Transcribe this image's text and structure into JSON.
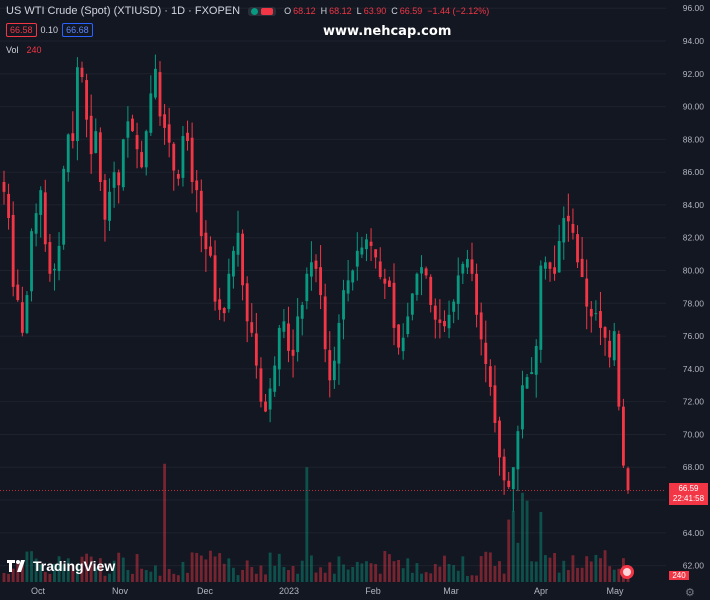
{
  "header": {
    "symbol_line": "US WTI Crude (Spot) (XTIUSD) · 1D · FXOPEN",
    "ohlc": [
      {
        "key": "O",
        "value": "68.12"
      },
      {
        "key": "H",
        "value": "68.12"
      },
      {
        "key": "L",
        "value": "63.90"
      },
      {
        "key": "C",
        "value": "66.59"
      }
    ],
    "change": "−1.44 (−2.12%)",
    "bid": "66.58",
    "spread": "0.10",
    "ask": "66.68",
    "vol_label": "Vol",
    "vol_value": "240"
  },
  "watermark": "www.nehcap.com",
  "brand": "TradingView",
  "price_tag": {
    "price": "66.59",
    "countdown": "22:41:58"
  },
  "volume_tag": "240",
  "colors": {
    "up": "#089981",
    "down": "#f23645",
    "background": "#131722",
    "bid": "#f23645",
    "ask": "#2962ff"
  },
  "icons": [
    "live-dot-icon",
    "record-icon",
    "tradingview-logo-icon",
    "us-flag-icon",
    "settings-gear-icon"
  ],
  "chart_data": {
    "type": "candlestick",
    "ylim": [
      61,
      96.5
    ],
    "y_ticks": [
      "96.00",
      "94.00",
      "92.00",
      "90.00",
      "88.00",
      "86.00",
      "84.00",
      "82.00",
      "80.00",
      "78.00",
      "76.00",
      "74.00",
      "72.00",
      "70.00",
      "68.00",
      "66.00",
      "64.00",
      "62.00"
    ],
    "x_ticks": [
      "Oct",
      "Nov",
      "Dec",
      "2023",
      "Feb",
      "Mar",
      "Apr",
      "May"
    ],
    "last_price": 66.59,
    "closes": [
      84.8,
      83.2,
      79.0,
      78.2,
      76.2,
      78.5,
      82.4,
      83.5,
      84.9,
      81.6,
      79.8,
      80.1,
      81.5,
      86.2,
      88.3,
      87.9,
      92.4,
      91.8,
      89.2,
      87.1,
      88.5,
      85.4,
      83.1,
      84.8,
      86.0,
      85.2,
      88.0,
      89.1,
      88.5,
      87.4,
      86.3,
      88.5,
      90.8,
      92.3,
      89.4,
      88.7,
      87.8,
      86.1,
      85.6,
      88.2,
      87.9,
      85.4,
      84.9,
      82.1,
      81.3,
      80.9,
      78.1,
      77.6,
      77.4,
      79.8,
      81.2,
      82.3,
      79.1,
      76.9,
      76.2,
      74.2,
      72.0,
      71.4,
      72.8,
      74.2,
      76.5,
      76.9,
      75.1,
      74.8,
      77.2,
      77.9,
      79.8,
      80.5,
      80.1,
      78.5,
      75.2,
      73.3,
      74.5,
      76.8,
      78.8,
      79.4,
      80.0,
      81.2,
      81.4,
      81.9,
      81.5,
      80.8,
      79.6,
      79.2,
      79.0,
      76.5,
      75.3,
      75.9,
      77.2,
      78.6,
      79.8,
      80.2,
      79.7,
      77.9,
      77.0,
      76.8,
      76.6,
      77.3,
      78.1,
      79.7,
      80.4,
      80.7,
      79.8,
      77.3,
      75.8,
      74.3,
      72.9,
      70.7,
      68.6,
      67.2,
      66.8,
      68.0,
      70.2,
      73.0,
      73.5,
      73.8,
      75.4,
      80.3,
      80.5,
      80.1,
      79.8,
      81.8,
      83.2,
      83.0,
      82.3,
      80.5,
      79.6,
      77.8,
      77.2,
      77.4,
      76.5,
      75.9,
      74.7,
      76.3,
      71.7,
      68.1,
      66.6
    ]
  }
}
